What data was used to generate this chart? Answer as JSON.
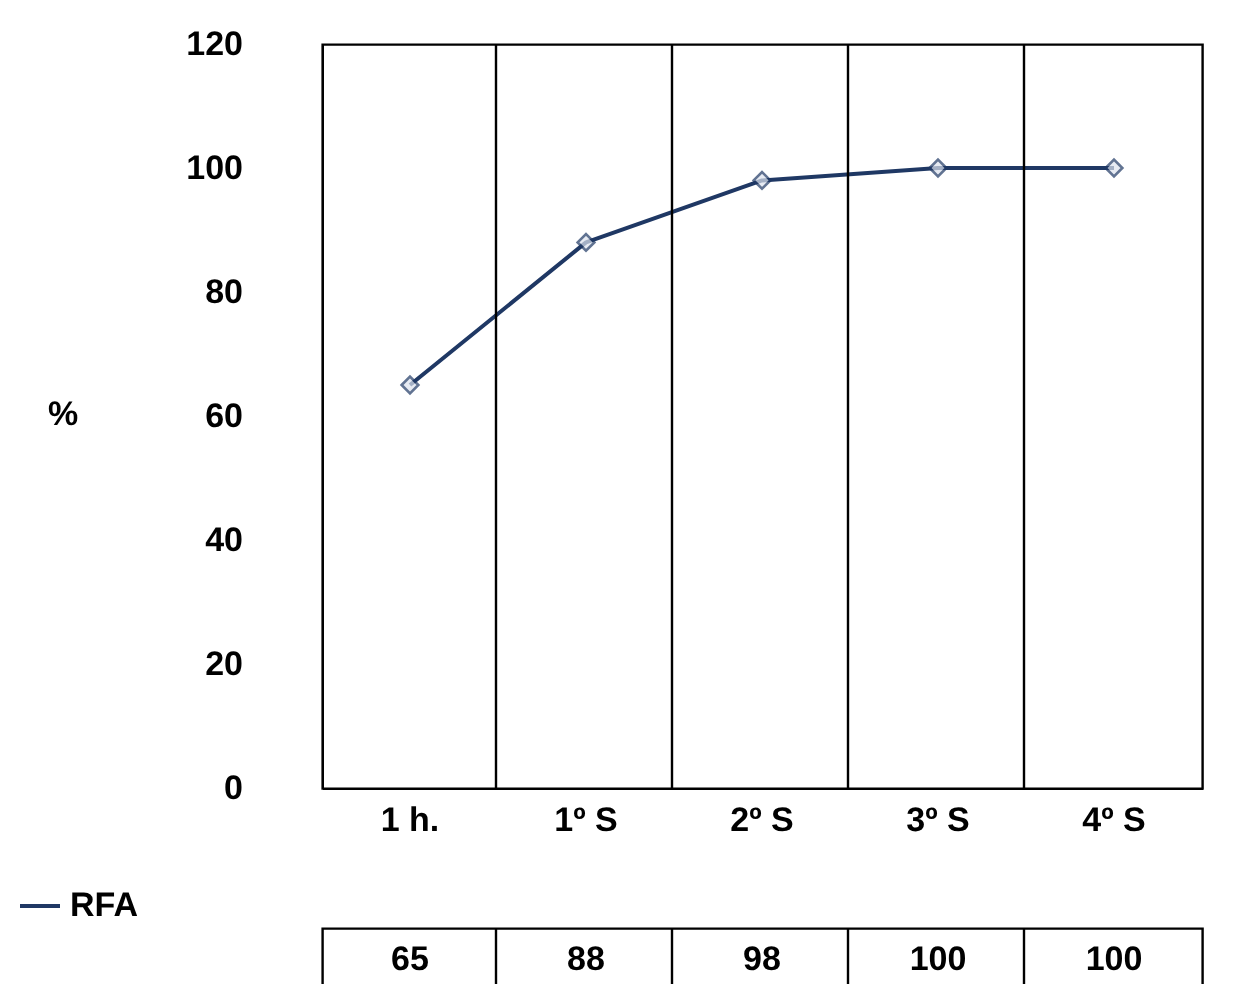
{
  "chart_data": {
    "type": "line",
    "ylabel": "%",
    "categories": [
      "1 h.",
      "1º S",
      "2º S",
      "3º S",
      "4º S"
    ],
    "series": [
      {
        "name": "RFA",
        "color": "#1f3864",
        "values": [
          65,
          88,
          98,
          100,
          100
        ]
      }
    ],
    "ylim": [
      0,
      120
    ],
    "yticks": [
      0,
      20,
      40,
      60,
      80,
      100,
      120
    ],
    "grid": "x",
    "marker": "diamond",
    "data_labels": true,
    "legend": "bottom left"
  }
}
